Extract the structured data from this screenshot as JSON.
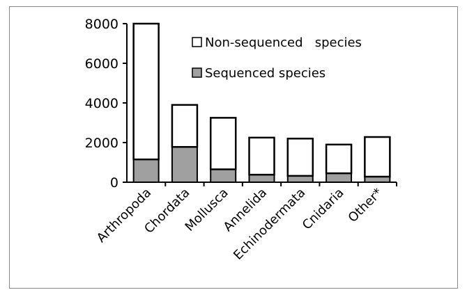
{
  "chart_data": {
    "type": "bar",
    "stacked": true,
    "title": "",
    "xlabel": "",
    "ylabel": "",
    "ylim": [
      0,
      8000
    ],
    "yticks": [
      0,
      2000,
      4000,
      6000,
      8000
    ],
    "grid": false,
    "legend_position": "top-right",
    "categories": [
      "Arthropoda",
      "Chordata",
      "Mollusca",
      "Annelida",
      "Echinodermata",
      "Cnidaria",
      "Other*"
    ],
    "series": [
      {
        "name": "Sequenced species",
        "color": "#a0a0a0",
        "values": [
          1150,
          1780,
          650,
          380,
          320,
          450,
          280
        ]
      },
      {
        "name": "Non-sequenced   species",
        "color": "#ffffff",
        "values": [
          6850,
          2120,
          2600,
          1870,
          1880,
          1450,
          2000
        ]
      }
    ],
    "legend_order": [
      "Non-sequenced   species",
      "Sequenced species"
    ]
  }
}
